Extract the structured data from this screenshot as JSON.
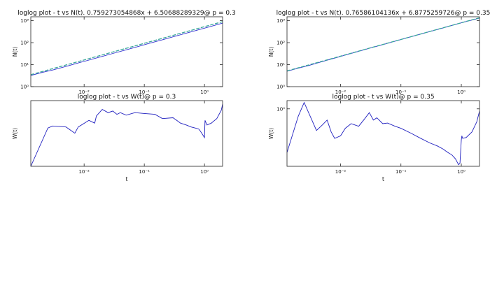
{
  "chart_data": [
    {
      "id": "fit-p03",
      "type": "line",
      "title": "loglog plot - t vs N(t). 0.759273054868x + 6.50688289329@ p = 0.3",
      "xlabel": "",
      "ylabel": "N(t)",
      "xscale": "log",
      "yscale": "log",
      "xlim": [
        0.0013,
        2.0
      ],
      "ylim": [
        1,
        1500
      ],
      "xticks": [
        {
          "v": 0.01,
          "label": "10⁻²"
        },
        {
          "v": 0.1,
          "label": "10⁻¹"
        },
        {
          "v": 1,
          "label": "10⁰"
        }
      ],
      "yticks": [
        {
          "v": 1,
          "label": "10⁰"
        },
        {
          "v": 10,
          "label": "10¹"
        },
        {
          "v": 100,
          "label": "10²"
        },
        {
          "v": 1000,
          "label": "10³"
        }
      ],
      "series": [
        {
          "kind": "data",
          "color": "#3030d0",
          "x": [
            0.0013,
            0.002,
            0.003,
            0.005,
            0.008,
            0.012,
            0.02,
            0.03,
            0.05,
            0.08,
            0.12,
            0.2,
            0.3,
            0.5,
            0.8,
            1.2,
            2.0
          ],
          "y": [
            3.2,
            4.4,
            5.7,
            8.3,
            11.9,
            16.1,
            23.7,
            32.3,
            47.1,
            67.5,
            92.2,
            134.8,
            183.5,
            270.1,
            385.0,
            525.0,
            773.0
          ]
        },
        {
          "kind": "fit",
          "color": "#3aa89a",
          "x": [
            0.0013,
            2.0
          ],
          "y": [
            3.5,
            900.0
          ]
        }
      ]
    },
    {
      "id": "fit-p035",
      "type": "line",
      "title": "loglog plot - t vs N(t). 0.76586104136x + 6.8775259726@ p = 0.35",
      "xlabel": "",
      "ylabel": "N(t)",
      "xscale": "log",
      "yscale": "log",
      "xlim": [
        0.0013,
        2.0
      ],
      "ylim": [
        1,
        1500
      ],
      "xticks": [
        {
          "v": 0.01,
          "label": "10⁻²"
        },
        {
          "v": 0.1,
          "label": "10⁻¹"
        },
        {
          "v": 1,
          "label": "10⁰"
        }
      ],
      "yticks": [
        {
          "v": 1,
          "label": "10⁰"
        },
        {
          "v": 10,
          "label": "10¹"
        },
        {
          "v": 100,
          "label": "10²"
        },
        {
          "v": 1000,
          "label": "10³"
        }
      ],
      "series": [
        {
          "kind": "data",
          "color": "#3030d0",
          "x": [
            0.0013,
            0.002,
            0.003,
            0.005,
            0.008,
            0.012,
            0.02,
            0.03,
            0.05,
            0.08,
            0.12,
            0.2,
            0.3,
            0.5,
            0.8,
            1.2,
            2.0
          ],
          "y": [
            5.0,
            6.9,
            9.2,
            13.8,
            19.8,
            27.3,
            40.5,
            55.3,
            81.2,
            117.0,
            160.3,
            234.0,
            318.0,
            470.0,
            675.0,
            910.0,
            1300.0
          ]
        },
        {
          "kind": "fit",
          "color": "#3aa89a",
          "x": [
            0.0013,
            2.0
          ],
          "y": [
            5.2,
            1350.0
          ]
        }
      ]
    },
    {
      "id": "w-p03",
      "type": "line",
      "title": "loglog plot - t vs W(t)@ p = 0.3",
      "xlabel": "t",
      "ylabel": "W(t)",
      "xscale": "log",
      "yscale": "log",
      "xlim": [
        0.0013,
        2.0
      ],
      "ylim": [
        0.45,
        1.08
      ],
      "xticks": [
        {
          "v": 0.01,
          "label": "10⁻²"
        },
        {
          "v": 0.1,
          "label": "10⁻¹"
        },
        {
          "v": 1,
          "label": "10⁰"
        }
      ],
      "yticks": [],
      "series": [
        {
          "kind": "data",
          "color": "#1f1fbf",
          "x": [
            0.0013,
            0.0025,
            0.003,
            0.005,
            0.007,
            0.008,
            0.012,
            0.015,
            0.016,
            0.02,
            0.025,
            0.03,
            0.035,
            0.04,
            0.05,
            0.07,
            0.1,
            0.15,
            0.2,
            0.3,
            0.4,
            0.5,
            0.6,
            0.7,
            0.8,
            0.85,
            0.9,
            1.0,
            1.02,
            1.1,
            1.3,
            1.6,
            1.9,
            2.0
          ],
          "y": [
            0.45,
            0.75,
            0.77,
            0.76,
            0.7,
            0.76,
            0.83,
            0.8,
            0.88,
            0.96,
            0.92,
            0.94,
            0.9,
            0.92,
            0.89,
            0.92,
            0.91,
            0.9,
            0.85,
            0.86,
            0.8,
            0.78,
            0.76,
            0.75,
            0.74,
            0.72,
            0.7,
            0.66,
            0.83,
            0.78,
            0.8,
            0.85,
            0.95,
            1.03
          ]
        }
      ]
    },
    {
      "id": "w-p035",
      "type": "line",
      "title": "loglog plot - t vs W(t)@ p = 0.35",
      "xlabel": "t",
      "ylabel": "W(t)",
      "xscale": "log",
      "yscale": "log",
      "xlim": [
        0.0013,
        2.0
      ],
      "ylim": [
        0.28,
        1.2
      ],
      "xticks": [
        {
          "v": 0.01,
          "label": "10⁻²"
        },
        {
          "v": 0.1,
          "label": "10⁻¹"
        },
        {
          "v": 1,
          "label": "10⁰"
        }
      ],
      "yticks": [
        {
          "v": 1,
          "label": "10⁰"
        }
      ],
      "series": [
        {
          "kind": "data",
          "color": "#1f1fbf",
          "x": [
            0.0013,
            0.002,
            0.0025,
            0.004,
            0.005,
            0.006,
            0.007,
            0.008,
            0.01,
            0.012,
            0.015,
            0.02,
            0.025,
            0.03,
            0.035,
            0.04,
            0.05,
            0.06,
            0.08,
            0.1,
            0.15,
            0.2,
            0.3,
            0.4,
            0.5,
            0.6,
            0.7,
            0.8,
            0.9,
            0.95,
            1.0,
            1.02,
            1.05,
            1.2,
            1.5,
            1.8,
            2.0
          ],
          "y": [
            0.38,
            0.85,
            1.15,
            0.62,
            0.7,
            0.78,
            0.6,
            0.52,
            0.55,
            0.65,
            0.72,
            0.68,
            0.8,
            0.92,
            0.78,
            0.82,
            0.72,
            0.73,
            0.68,
            0.65,
            0.58,
            0.53,
            0.47,
            0.44,
            0.41,
            0.38,
            0.36,
            0.33,
            0.29,
            0.3,
            0.5,
            0.55,
            0.52,
            0.53,
            0.6,
            0.75,
            0.95
          ]
        }
      ]
    }
  ]
}
